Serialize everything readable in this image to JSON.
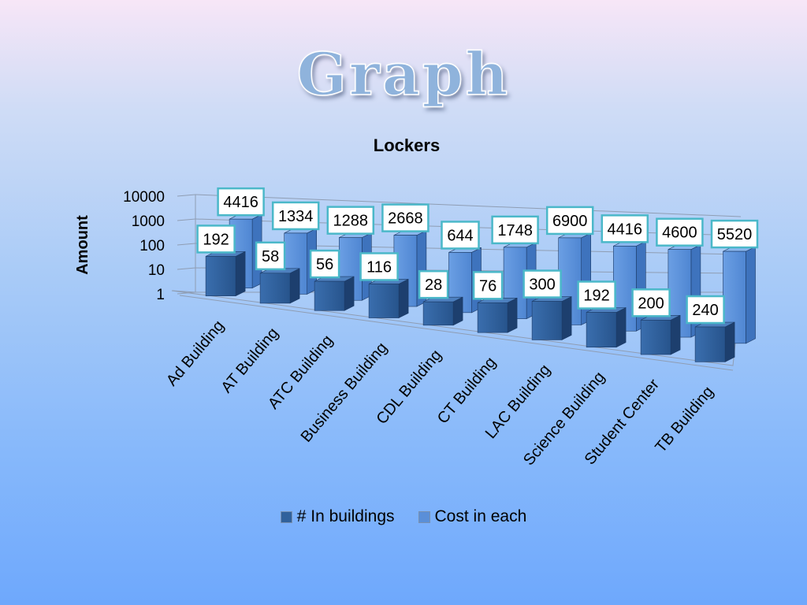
{
  "slide": {
    "title": "Graph"
  },
  "chart_data": {
    "type": "bar",
    "title": "Lockers",
    "ylabel": "Amount",
    "xlabel": "",
    "yscale": "log",
    "ylim": [
      1,
      10000
    ],
    "yticks": [
      "1",
      "10",
      "100",
      "1000",
      "10000"
    ],
    "categories": [
      "Ad Building",
      "AT Building",
      "ATC Building",
      "Business Building",
      "CDL Building",
      "CT Building",
      "LAC Building",
      "Science Building",
      "Student Center",
      "TB Building"
    ],
    "series": [
      {
        "name": "# In buildings",
        "values": [
          192,
          58,
          56,
          116,
          28,
          76,
          300,
          192,
          200,
          240
        ]
      },
      {
        "name": "Cost in each",
        "values": [
          4416,
          1334,
          1288,
          2668,
          644,
          1748,
          6900,
          4416,
          4600,
          5520
        ]
      }
    ],
    "colors": {
      "front_series": "#30619c",
      "back_series": "#5a8fd8",
      "label_border": "#4bb8c9"
    },
    "legend_position": "bottom",
    "grid": true
  }
}
